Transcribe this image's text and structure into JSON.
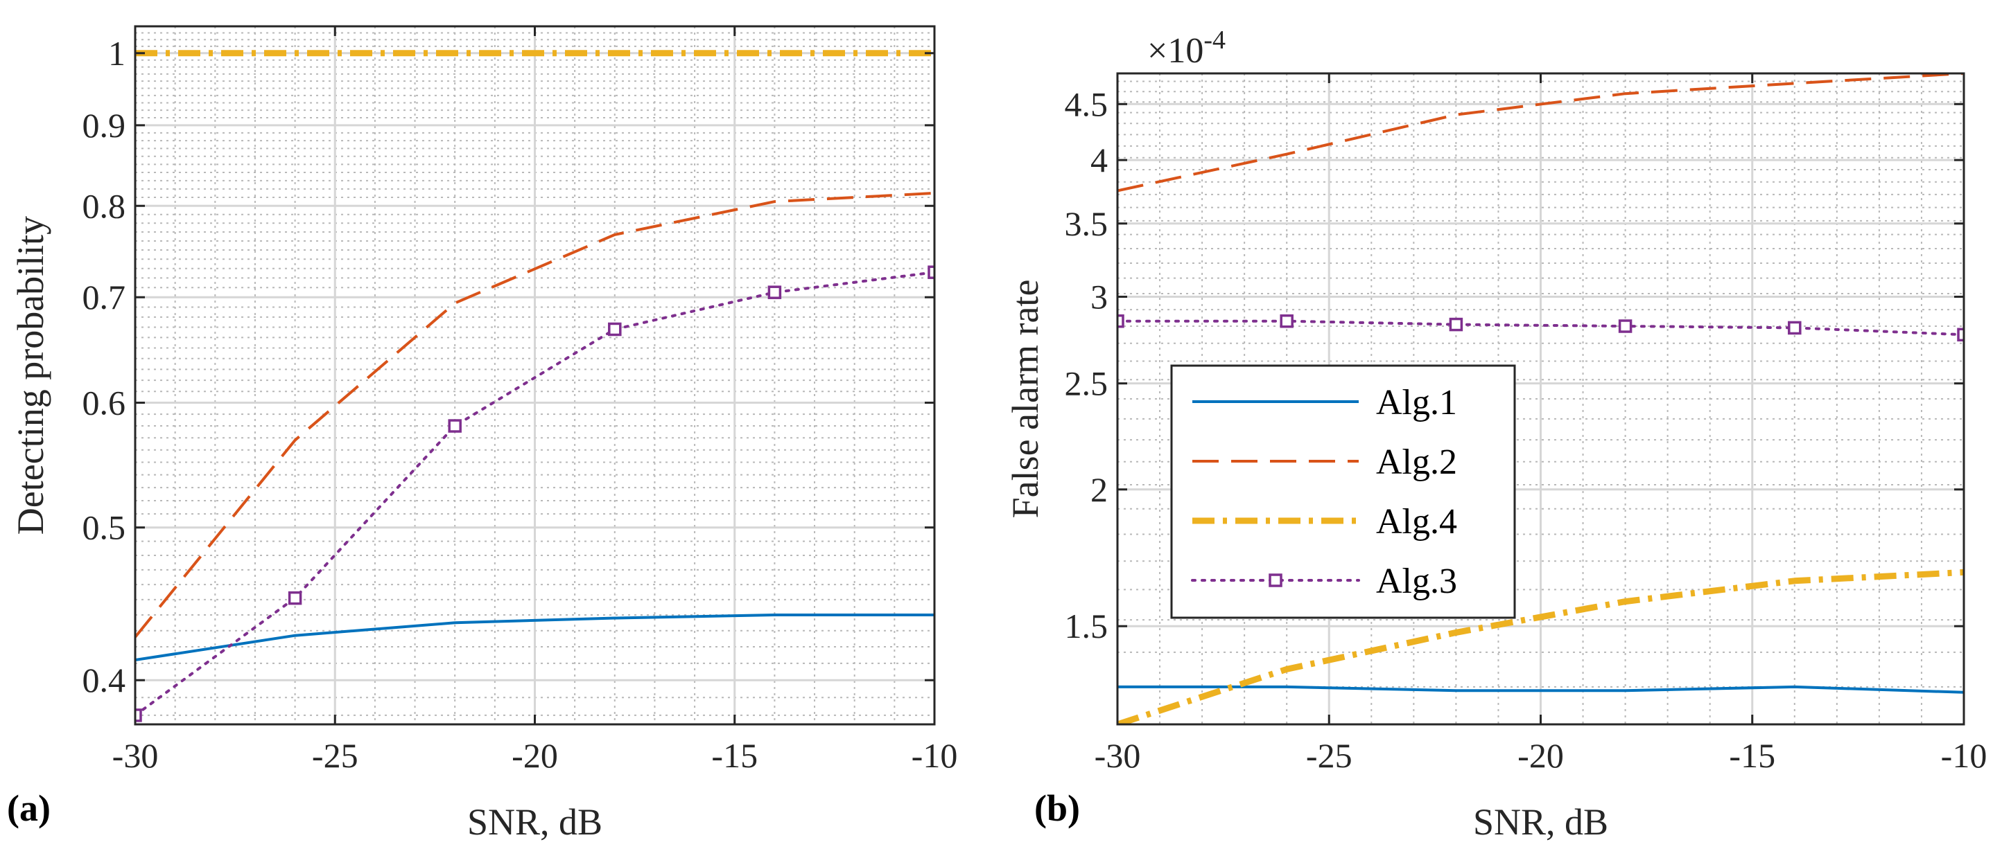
{
  "chart_data": [
    {
      "type": "line",
      "panel_label": "(a)",
      "xlabel": "SNR, dB",
      "ylabel": "Detecting probability",
      "xlim": [
        -30,
        -10
      ],
      "ylim": [
        0.375,
        1.04
      ],
      "yscale": "log",
      "grid": "major and minor",
      "xticks": [
        -30,
        -25,
        -20,
        -15,
        -10
      ],
      "xtick_labels": [
        "-30",
        "-25",
        "-20",
        "-15",
        "-10"
      ],
      "yticks": [
        0.4,
        0.5,
        0.6,
        0.7,
        0.8,
        0.9,
        1
      ],
      "ytick_labels": [
        "0.4",
        "0.5",
        "0.6",
        "0.7",
        "0.8",
        "0.9",
        "1"
      ],
      "x": [
        -30,
        -26,
        -22,
        -18,
        -14,
        -10
      ],
      "series": [
        {
          "name": "Alg.1",
          "values": [
            0.412,
            0.427,
            0.435,
            0.438,
            0.44,
            0.44
          ],
          "color": "#0072BD",
          "style": "solid",
          "width": 4
        },
        {
          "name": "Alg.2",
          "values": [
            0.426,
            0.568,
            0.694,
            0.767,
            0.805,
            0.815
          ],
          "color": "#D95319",
          "style": "dashed",
          "width": 4
        },
        {
          "name": "Alg.4",
          "values": [
            1.0,
            1.0,
            1.0,
            1.0,
            1.0,
            1.0
          ],
          "color": "#EDB120",
          "style": "dashdot",
          "width": 9
        },
        {
          "name": "Alg.3",
          "values": [
            0.38,
            0.451,
            0.58,
            0.668,
            0.705,
            0.726
          ],
          "color": "#7E2F8E",
          "style": "dotted",
          "width": 4,
          "marker": "square"
        }
      ]
    },
    {
      "type": "line",
      "panel_label": "(b)",
      "xlabel": "SNR, dB",
      "ylabel": "False alarm rate",
      "exponent_label": "×10",
      "exponent_power": "-4",
      "xlim": [
        -30,
        -10
      ],
      "ylim": [
        1.22,
        4.8
      ],
      "yscale": "log",
      "grid": "major and minor",
      "xticks": [
        -30,
        -25,
        -20,
        -15,
        -10
      ],
      "xtick_labels": [
        "-30",
        "-25",
        "-20",
        "-15",
        "-10"
      ],
      "yticks": [
        1.5,
        2,
        2.5,
        3,
        3.5,
        4,
        4.5
      ],
      "ytick_labels": [
        "1.5",
        "2",
        "2.5",
        "3",
        "3.5",
        "4",
        "4.5"
      ],
      "x": [
        -30,
        -26,
        -22,
        -18,
        -14,
        -10
      ],
      "series": [
        {
          "name": "Alg.1",
          "values": [
            1.32,
            1.32,
            1.31,
            1.31,
            1.32,
            1.305
          ],
          "color": "#0072BD",
          "style": "solid",
          "width": 4
        },
        {
          "name": "Alg.2",
          "values": [
            3.75,
            4.05,
            4.4,
            4.6,
            4.7,
            4.8
          ],
          "color": "#D95319",
          "style": "dashed",
          "width": 4
        },
        {
          "name": "Alg.4",
          "values": [
            1.22,
            1.37,
            1.48,
            1.58,
            1.65,
            1.68
          ],
          "color": "#EDB120",
          "style": "dashdot",
          "width": 9
        },
        {
          "name": "Alg.3",
          "values": [
            2.85,
            2.85,
            2.83,
            2.82,
            2.81,
            2.77
          ],
          "color": "#7E2F8E",
          "style": "dotted",
          "width": 4,
          "marker": "square"
        }
      ],
      "legend": {
        "placement": "left-middle",
        "entries": [
          "Alg.1",
          "Alg.2",
          "Alg.4",
          "Alg.3"
        ]
      }
    }
  ]
}
